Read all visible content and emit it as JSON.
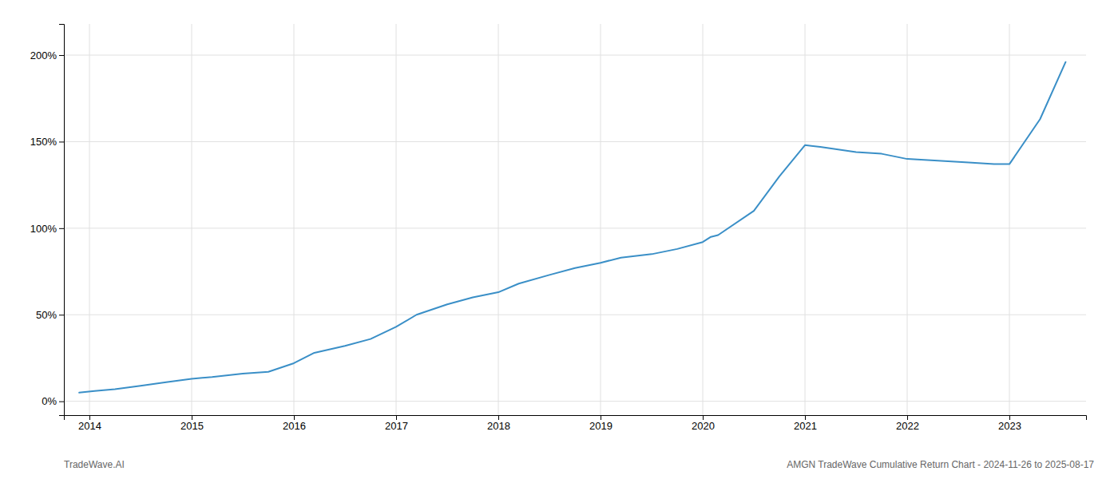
{
  "chart_data": {
    "type": "line",
    "annotations": [
      "TradeWave.AI",
      "AMGN TradeWave Cumulative Return Chart - 2024-11-26 to 2025-08-17"
    ],
    "x": [
      2013.9,
      2014.05,
      2014.25,
      2014.5,
      2014.75,
      2015.0,
      2015.2,
      2015.5,
      2015.75,
      2016.0,
      2016.2,
      2016.5,
      2016.75,
      2017.0,
      2017.2,
      2017.5,
      2017.75,
      2018.0,
      2018.2,
      2018.5,
      2018.75,
      2019.0,
      2019.2,
      2019.5,
      2019.75,
      2020.0,
      2020.08,
      2020.15,
      2020.5,
      2020.75,
      2021.0,
      2021.15,
      2021.5,
      2021.75,
      2022.0,
      2022.3,
      2022.6,
      2022.85,
      2023.0,
      2023.3,
      2023.55
    ],
    "values": [
      5,
      6,
      7,
      9,
      11,
      13,
      14,
      16,
      17,
      22,
      28,
      32,
      36,
      43,
      50,
      56,
      60,
      63,
      68,
      73,
      77,
      80,
      83,
      85,
      88,
      92,
      95,
      96,
      110,
      130,
      148,
      147,
      144,
      143,
      140,
      139,
      138,
      137,
      137,
      163,
      196
    ],
    "color": "#3a8fc7",
    "xlim": [
      2013.75,
      2023.75
    ],
    "ylim": [
      -8,
      218
    ],
    "xticks": [
      2014,
      2015,
      2016,
      2017,
      2018,
      2019,
      2020,
      2021,
      2022,
      2023
    ],
    "yticks": [
      {
        "value": 0,
        "label": "0%"
      },
      {
        "value": 50,
        "label": "50%"
      },
      {
        "value": 100,
        "label": "100%"
      },
      {
        "value": 150,
        "label": "150%"
      },
      {
        "value": 200,
        "label": "200%"
      }
    ],
    "grid": true
  }
}
